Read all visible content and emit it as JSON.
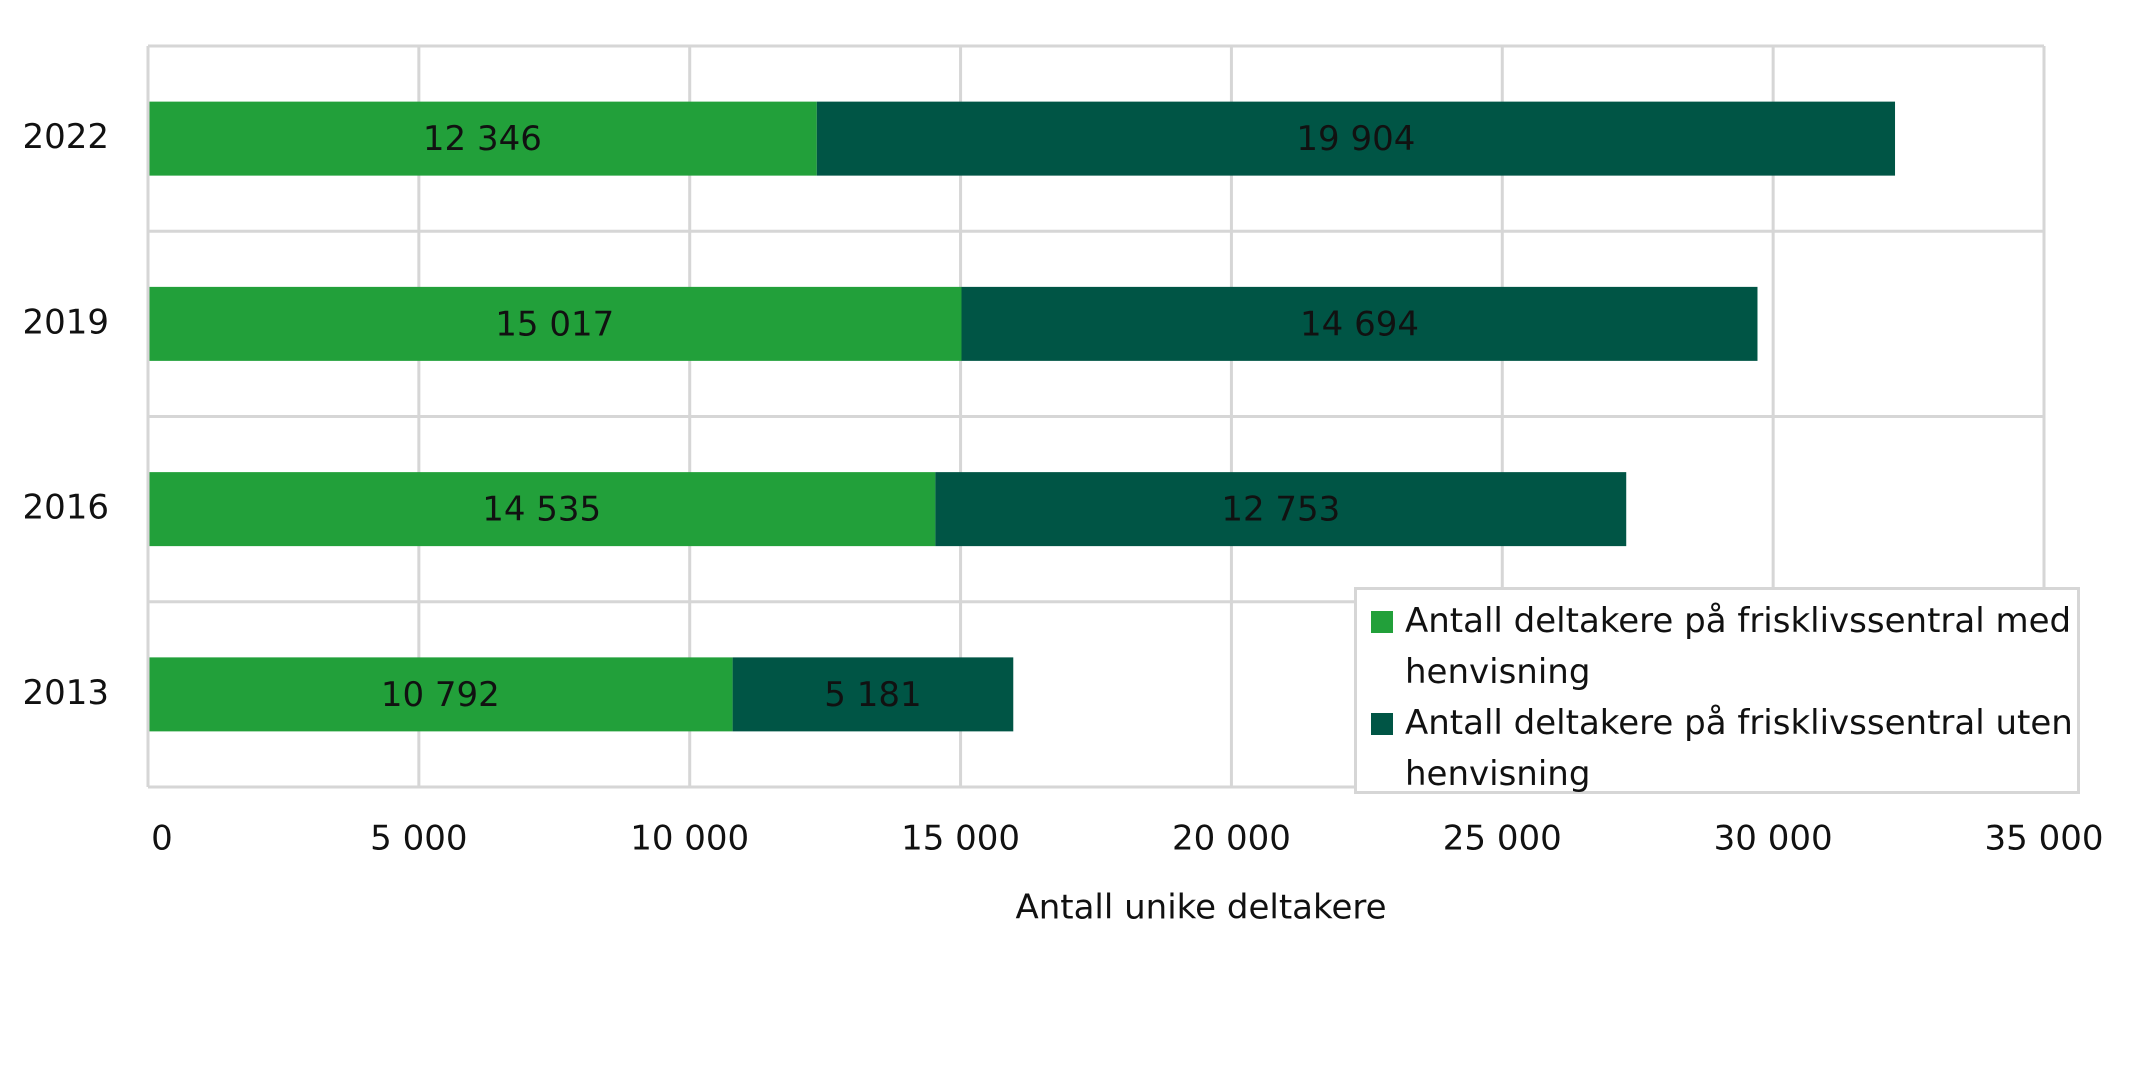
{
  "chart_data": {
    "type": "stacked-bar-horizontal",
    "x_label": "Antall unike deltakere",
    "categories": [
      "2022",
      "2019",
      "2016",
      "2013"
    ],
    "series": [
      {
        "name": "Antall deltakere på frisklivssentral med henvisning",
        "color": "#22a03a",
        "values": [
          12346,
          15017,
          14535,
          10792
        ],
        "value_labels": [
          "12 346",
          "15 017",
          "14 535",
          "10 792"
        ]
      },
      {
        "name": "Antall deltakere på frisklivssentral uten henvisning",
        "color": "#005545",
        "values": [
          19904,
          14694,
          12753,
          5181
        ],
        "value_labels": [
          "19 904",
          "14 694",
          "12 753",
          "5 181"
        ]
      }
    ],
    "xlim": [
      0,
      35000
    ],
    "xticks": [
      0,
      {
        "value": 5000,
        "label": "5 000"
      },
      {
        "value": 10000,
        "label": "10 000"
      },
      {
        "value": 15000,
        "label": "15 000"
      },
      {
        "value": 20000,
        "label": "20 000"
      },
      {
        "value": 25000,
        "label": "25 000"
      },
      {
        "value": 30000,
        "label": "30 000"
      },
      {
        "value": 35000,
        "label": "35 000"
      }
    ],
    "grid": true,
    "legend": "lower right"
  }
}
